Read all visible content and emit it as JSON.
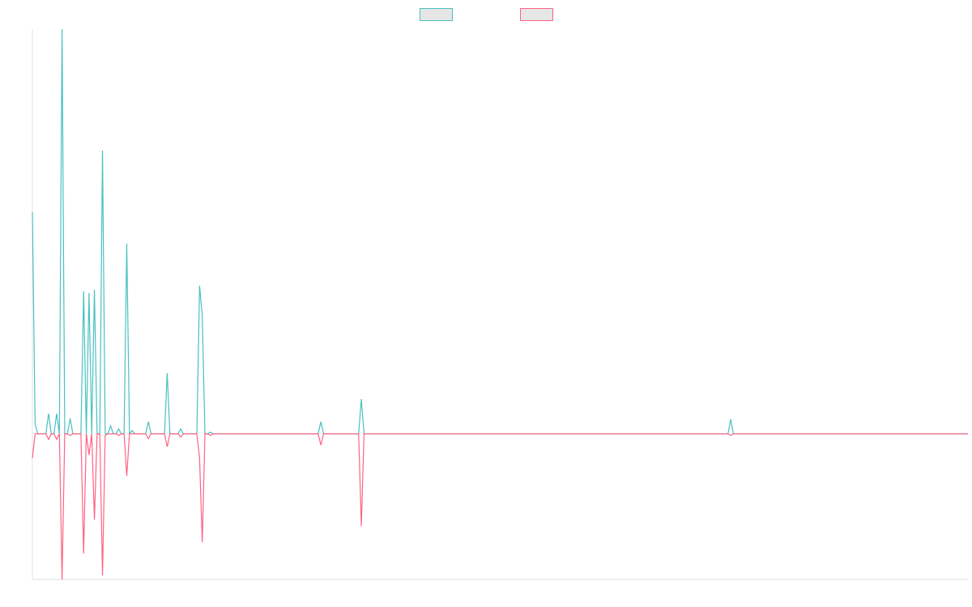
{
  "chart_data": {
    "type": "line",
    "x": [
      0,
      1,
      2,
      5,
      6,
      7,
      8,
      9,
      10,
      11,
      12,
      13,
      14,
      15,
      18,
      19,
      20,
      21,
      22,
      23,
      24,
      25,
      26,
      27,
      28,
      29,
      30,
      31,
      32,
      33,
      34,
      35,
      36,
      37,
      38,
      42,
      43,
      44,
      49,
      50,
      51,
      54,
      55,
      56,
      61,
      62,
      63,
      64,
      65,
      66,
      67,
      106,
      107,
      108,
      121,
      122,
      123,
      258,
      259,
      260,
      347
    ],
    "series": [
      {
        "color": "#4bc0c0",
        "values": [
          274,
          12,
          0,
          0,
          25,
          0,
          0,
          25,
          0,
          500,
          0,
          0,
          19,
          0,
          0,
          176,
          0,
          174,
          0,
          178,
          0,
          0,
          350,
          0,
          0,
          10,
          0,
          0,
          6,
          0,
          0,
          235,
          0,
          4,
          0,
          0,
          15,
          0,
          0,
          75,
          0,
          0,
          6,
          0,
          0,
          183,
          146,
          0,
          0,
          2,
          0,
          0,
          15,
          0,
          0,
          43,
          0,
          0,
          18,
          0,
          0
        ]
      },
      {
        "color": "#ff6384",
        "values": [
          -30,
          0,
          0,
          0,
          -7,
          0,
          0,
          -7,
          0,
          -180,
          0,
          0,
          -2,
          0,
          0,
          -148,
          0,
          -26,
          0,
          -106,
          0,
          0,
          -175,
          -2,
          0,
          0,
          0,
          0,
          -2,
          0,
          0,
          -52,
          0,
          0,
          0,
          0,
          -6,
          0,
          0,
          -16,
          0,
          0,
          -4,
          0,
          0,
          -30,
          -134,
          0,
          0,
          -2,
          0,
          0,
          -14,
          0,
          0,
          -114,
          0,
          0,
          -2,
          0,
          0
        ]
      }
    ],
    "xlim": [
      0,
      347
    ],
    "ylim": [
      -180,
      500
    ],
    "legend": "top"
  }
}
